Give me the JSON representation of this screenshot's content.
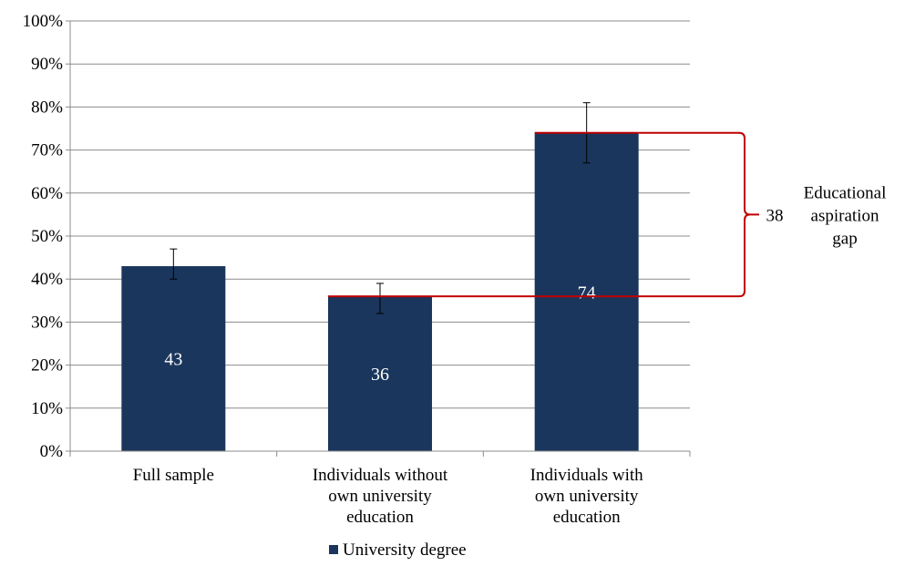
{
  "chart_data": {
    "type": "bar",
    "categories": [
      [
        "Full sample"
      ],
      [
        "Individuals without",
        "own university",
        "education"
      ],
      [
        "Individuals with",
        "own university",
        "education"
      ]
    ],
    "series": [
      {
        "name": "University degree",
        "values": [
          43,
          36,
          74
        ],
        "error_low": [
          40,
          32,
          67
        ],
        "error_high": [
          47,
          39,
          81
        ],
        "data_labels": [
          "43",
          "36",
          "74"
        ],
        "color": "#1b365d"
      }
    ],
    "yticks": [
      "0%",
      "10%",
      "20%",
      "30%",
      "40%",
      "50%",
      "60%",
      "70%",
      "80%",
      "90%",
      "100%"
    ],
    "ylim": [
      0,
      100
    ],
    "grid": true,
    "legend_position": "bottom",
    "annotation": {
      "value_label": "38",
      "text_lines": [
        "Educational",
        "aspiration",
        "gap"
      ],
      "from": 36,
      "to": 74,
      "color": "#c00000"
    }
  }
}
